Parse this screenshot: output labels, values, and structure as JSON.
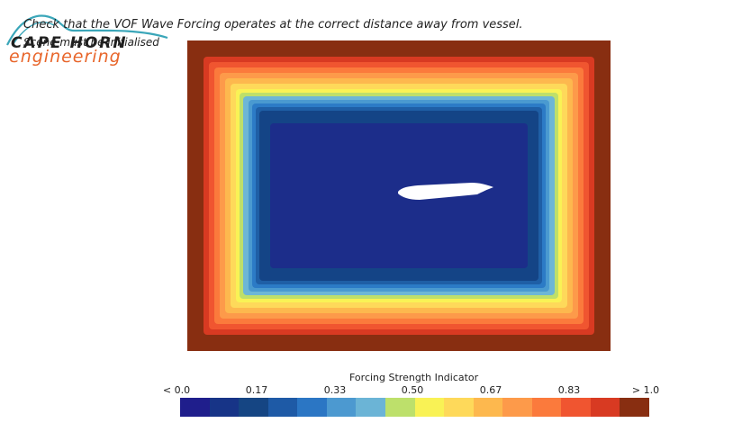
{
  "logo": {
    "wordmark": "CAPE HORN",
    "subtitle": "engineering",
    "swoosh_color": "#3aa6b9",
    "sub_color": "#e8652a"
  },
  "instructions": {
    "line1": "Check that the VOF Wave Forcing operates at the correct distance away from vessel.",
    "line2": "Scene must be initialised"
  },
  "viewport": {
    "background": "#ffffff",
    "bands": [
      "#882e11",
      "#d83a22",
      "#f05530",
      "#fb7a3c",
      "#fd9a4a",
      "#fdb84e",
      "#fed95a",
      "#f9f255",
      "#bedf6a",
      "#6db6d6",
      "#4a9ad0",
      "#2c7bc6",
      "#1f5fa6",
      "#144486",
      "#1c2d8a"
    ],
    "vessel_color": "#ffffff"
  },
  "colorbar": {
    "title": "Forcing Strength Indicator",
    "ticks": [
      "< 0.0",
      "0.17",
      "0.33",
      "0.50",
      "0.67",
      "0.83",
      "> 1.0"
    ],
    "colors": [
      "#1f1e8c",
      "#173487",
      "#154583",
      "#1e5aa6",
      "#2b76c4",
      "#4c99d0",
      "#6bb4d6",
      "#bde06b",
      "#f9f255",
      "#fed95a",
      "#fdb84e",
      "#fd9a4a",
      "#fb7a3c",
      "#f05530",
      "#d83a22",
      "#882e11"
    ]
  }
}
